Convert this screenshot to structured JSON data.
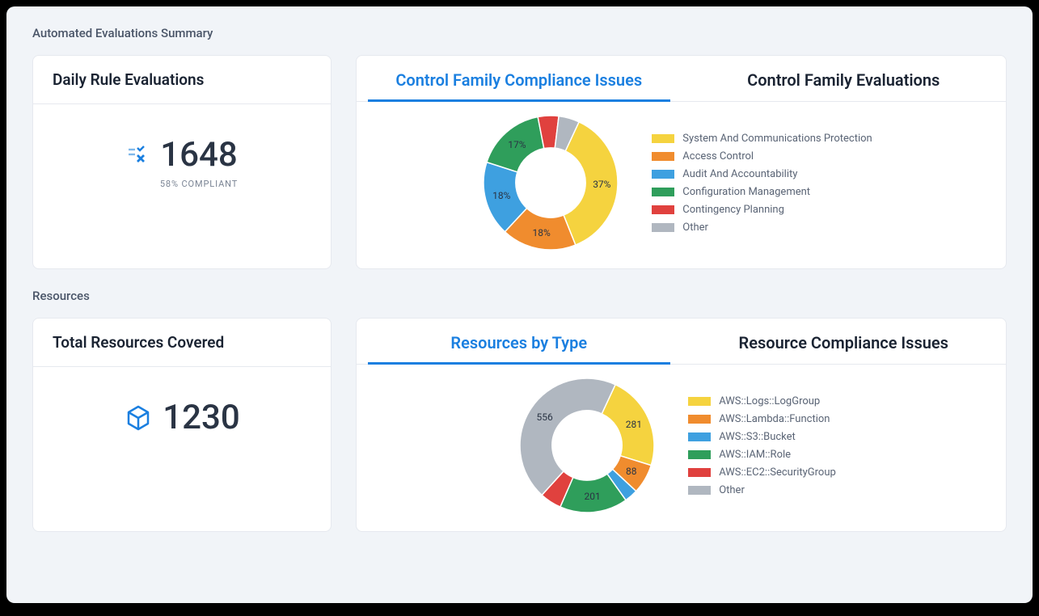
{
  "sections": {
    "evaluations_title": "Automated Evaluations Summary",
    "resources_title": "Resources"
  },
  "daily_rule": {
    "title": "Daily Rule Evaluations",
    "value": "1648",
    "sub": "58% COMPLIANT",
    "icon_colors": {
      "line": "#1a7fe0",
      "x": "#1a7fe0"
    }
  },
  "total_resources": {
    "title": "Total Resources Covered",
    "value": "1230",
    "icon_color": "#1a7fe0"
  },
  "control_chart": {
    "tabs": [
      "Control Family Compliance Issues",
      "Control Family Evaluations"
    ],
    "active_tab": 0,
    "type": "donut",
    "inner_radius_ratio": 0.52,
    "background_color": "#ffffff",
    "label_fontsize": 12,
    "legend_fontsize": 13,
    "slices": [
      {
        "label": "System And Communications Protection",
        "value": 37,
        "display": "37%",
        "color": "#f5d33f"
      },
      {
        "label": "Access Control",
        "value": 18,
        "display": "18%",
        "color": "#f08c2e"
      },
      {
        "label": "Audit And Accountability",
        "value": 18,
        "display": "18%",
        "color": "#3ea0e0"
      },
      {
        "label": "Configuration Management",
        "value": 17,
        "display": "17%",
        "color": "#2f9e5b"
      },
      {
        "label": "Contingency Planning",
        "value": 5,
        "display": "",
        "color": "#e0413e"
      },
      {
        "label": "Other",
        "value": 5,
        "display": "",
        "color": "#b0b7c0"
      }
    ],
    "start_angle_deg": -65
  },
  "resource_chart": {
    "tabs": [
      "Resources by Type",
      "Resource Compliance Issues"
    ],
    "active_tab": 0,
    "type": "donut",
    "inner_radius_ratio": 0.52,
    "background_color": "#ffffff",
    "label_fontsize": 12,
    "legend_fontsize": 13,
    "slices": [
      {
        "label": "AWS::Logs::LogGroup",
        "value": 281,
        "display": "281",
        "color": "#f5d33f"
      },
      {
        "label": "AWS::Lambda::Function",
        "value": 88,
        "display": "88",
        "color": "#f08c2e"
      },
      {
        "label": "AWS::S3::Bucket",
        "value": 40,
        "display": "",
        "color": "#3ea0e0"
      },
      {
        "label": "AWS::IAM::Role",
        "value": 201,
        "display": "201",
        "color": "#2f9e5b"
      },
      {
        "label": "AWS::EC2::SecurityGroup",
        "value": 64,
        "display": "",
        "color": "#e0413e"
      },
      {
        "label": "Other",
        "value": 556,
        "display": "556",
        "color": "#b0b7c0"
      }
    ],
    "start_angle_deg": -65
  }
}
